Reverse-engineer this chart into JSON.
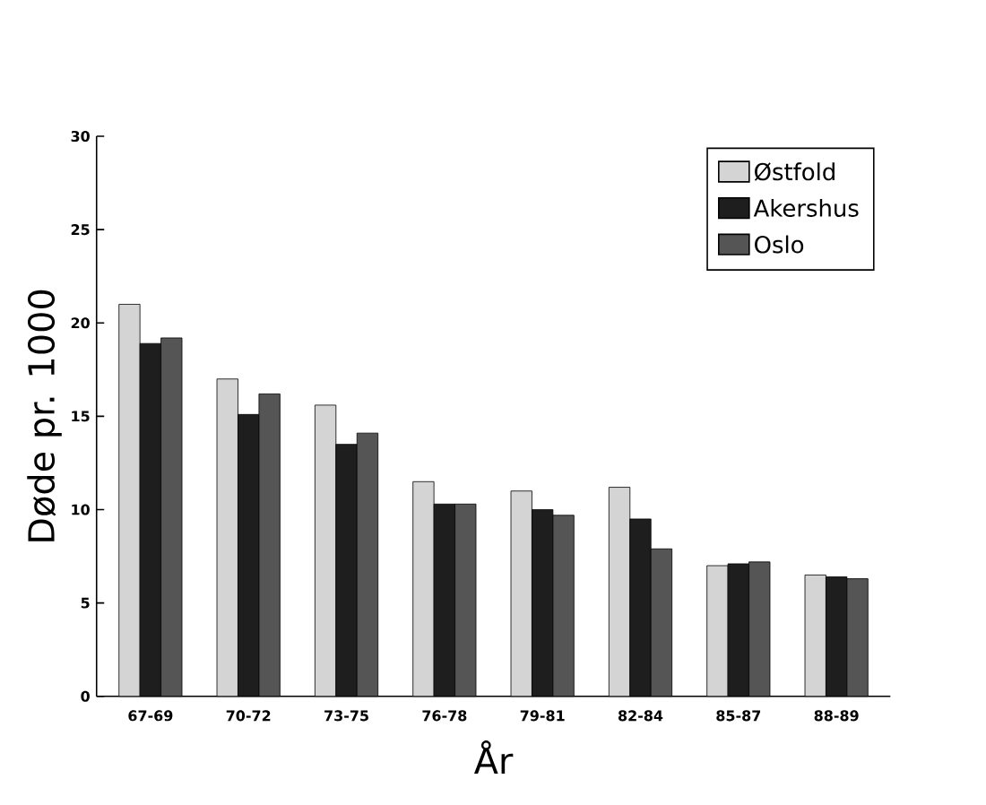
{
  "chart_data": {
    "type": "bar",
    "xlabel": "År",
    "ylabel": "Døde pr. 1000",
    "categories": [
      "67-69",
      "70-72",
      "73-75",
      "76-78",
      "79-81",
      "82-84",
      "85-87",
      "88-89"
    ],
    "series": [
      {
        "name": "Østfold",
        "color": "#d4d4d4",
        "values": [
          21,
          17,
          15.6,
          11.5,
          11,
          11.2,
          7,
          6.5
        ]
      },
      {
        "name": "Akershus",
        "color": "#1e1e1e",
        "values": [
          18.9,
          15.1,
          13.5,
          10.3,
          10,
          9.5,
          7.1,
          6.4
        ]
      },
      {
        "name": "Oslo",
        "color": "#555555",
        "values": [
          19.2,
          16.2,
          14.1,
          10.3,
          9.7,
          7.9,
          7.2,
          6.3
        ]
      }
    ],
    "ylim": [
      0,
      30
    ],
    "yticks": [
      0,
      5,
      10,
      15,
      20,
      25,
      30
    ],
    "grid": false,
    "legend": "top right"
  }
}
